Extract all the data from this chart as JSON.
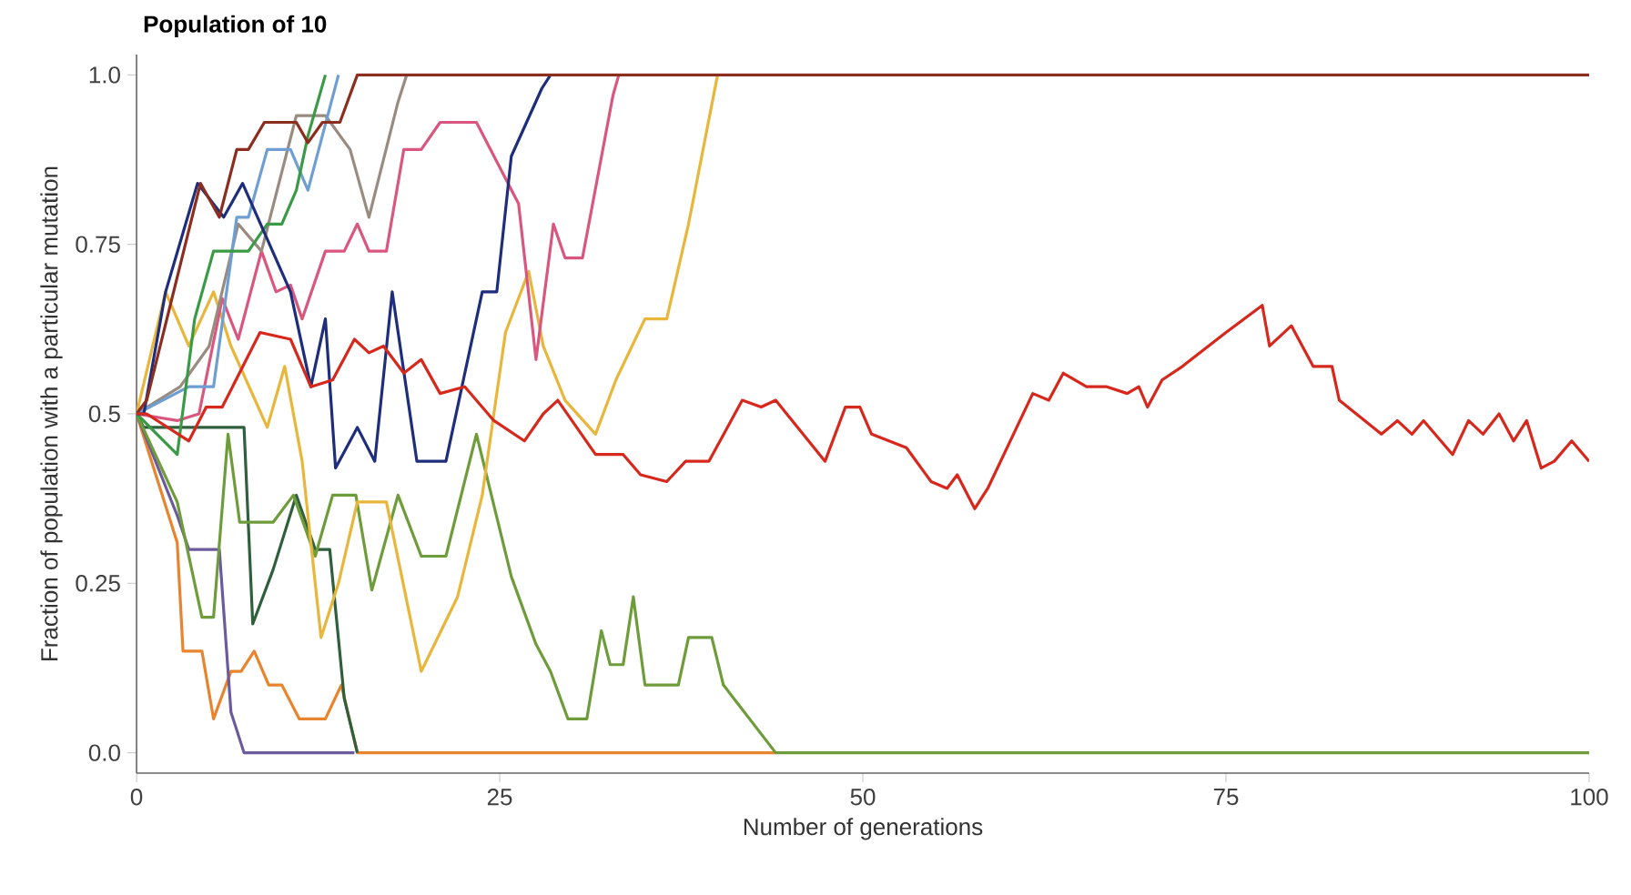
{
  "chart_data": {
    "type": "line",
    "title": "Population of 10",
    "xlabel": "Number of generations",
    "ylabel": "Fraction of population with a particular mutation",
    "xlim": [
      0,
      100
    ],
    "ylim": [
      -0.03,
      1.03
    ],
    "xticks": [
      0,
      25,
      50,
      75,
      100
    ],
    "yticks": [
      {
        "value": 0,
        "label": "0.0"
      },
      0.25,
      0.5,
      0.75,
      {
        "value": 1,
        "label": "1.0"
      }
    ],
    "marker": "none",
    "line_style": "solid",
    "series": [
      {
        "color": "#e8832e",
        "x": [
          0,
          2.8,
          3.2,
          4.5,
          5.3,
          6.5,
          7.2,
          8.1,
          9.1,
          10,
          11.2,
          13,
          14.1,
          15.2,
          44
        ],
        "values": [
          0.5,
          0.31,
          0.15,
          0.15,
          0.05,
          0.12,
          0.12,
          0.15,
          0.1,
          0.1,
          0.05,
          0.05,
          0.1,
          0,
          0
        ]
      },
      {
        "color": "#6b5a9c",
        "x": [
          0,
          2.8,
          3.6,
          5.7,
          6.5,
          7.4,
          15
        ],
        "values": [
          0.5,
          0.35,
          0.3,
          0.3,
          0.06,
          0,
          0
        ]
      },
      {
        "color": "#2f5f3c",
        "x": [
          0,
          0.5,
          7.4,
          8,
          9.4,
          11,
          12.3,
          13.3,
          14.3,
          15.2
        ],
        "values": [
          0.5,
          0.48,
          0.48,
          0.19,
          0.27,
          0.38,
          0.3,
          0.3,
          0.08,
          0
        ]
      },
      {
        "color": "#6e9c3a",
        "x": [
          0,
          2.8,
          4.5,
          5.3,
          6.3,
          7.1,
          9.4,
          10.8,
          12.3,
          13.5,
          15.1,
          16.2,
          18,
          19.6,
          21.3,
          23.4,
          25.8,
          27.5,
          28.5,
          29.7,
          31,
          32,
          32.6,
          33.5,
          34.2,
          35,
          37.3,
          38,
          39.6,
          40.4,
          44,
          100
        ],
        "values": [
          0.5,
          0.37,
          0.2,
          0.2,
          0.47,
          0.34,
          0.34,
          0.38,
          0.29,
          0.38,
          0.38,
          0.24,
          0.38,
          0.29,
          0.29,
          0.47,
          0.26,
          0.16,
          0.12,
          0.05,
          0.05,
          0.18,
          0.13,
          0.13,
          0.23,
          0.1,
          0.1,
          0.17,
          0.17,
          0.1,
          0,
          0
        ]
      },
      {
        "color": "#e9b63c",
        "x": [
          0,
          2,
          3.6,
          5.3,
          6.5,
          9,
          10.2,
          11.4,
          12.7,
          13.9,
          15.2,
          17.2,
          19.6,
          22.1,
          23.8,
          25.4,
          27,
          28,
          29.5,
          31.6,
          33,
          35,
          36.5,
          38,
          40
        ],
        "values": [
          0.5,
          0.68,
          0.6,
          0.68,
          0.6,
          0.48,
          0.57,
          0.43,
          0.17,
          0.25,
          0.37,
          0.37,
          0.12,
          0.23,
          0.38,
          0.62,
          0.71,
          0.6,
          0.52,
          0.47,
          0.55,
          0.64,
          0.64,
          0.78,
          1
        ]
      },
      {
        "color": "#d9577f",
        "x": [
          0,
          2.8,
          4.3,
          5.9,
          7,
          8.6,
          9.6,
          10.6,
          11.4,
          13,
          14.3,
          15.2,
          16,
          17.2,
          18.4,
          19.6,
          20.9,
          23.4,
          26.3,
          27.5,
          28.7,
          29.5,
          30.7,
          32.8,
          33.2
        ],
        "values": [
          0.5,
          0.49,
          0.5,
          0.67,
          0.61,
          0.74,
          0.68,
          0.69,
          0.64,
          0.74,
          0.74,
          0.78,
          0.74,
          0.74,
          0.89,
          0.89,
          0.93,
          0.93,
          0.81,
          0.58,
          0.78,
          0.73,
          0.73,
          0.97,
          1
        ]
      },
      {
        "color": "#9a8b80",
        "x": [
          0,
          3,
          5,
          7,
          8.6,
          11,
          13,
          14.7,
          16,
          18,
          18.6
        ],
        "values": [
          0.5,
          0.54,
          0.6,
          0.78,
          0.74,
          0.94,
          0.94,
          0.89,
          0.79,
          0.96,
          1
        ]
      },
      {
        "color": "#6f9fd2",
        "x": [
          0,
          3.6,
          5.3,
          6.9,
          7.7,
          9,
          10.6,
          11.8,
          13.9
        ],
        "values": [
          0.5,
          0.54,
          0.54,
          0.79,
          0.79,
          0.89,
          0.89,
          0.83,
          1
        ]
      },
      {
        "color": "#3a9a45",
        "x": [
          0,
          2.8,
          4,
          5.3,
          7.7,
          9,
          10,
          11,
          11.8,
          13
        ],
        "values": [
          0.5,
          0.44,
          0.64,
          0.74,
          0.74,
          0.78,
          0.78,
          0.83,
          0.91,
          1
        ]
      },
      {
        "color": "#1f2e7c",
        "x": [
          0,
          0.5,
          2,
          4.2,
          6,
          7.3,
          10.6,
          12,
          13,
          13.7,
          15.2,
          16.4,
          17.6,
          19.3,
          21.3,
          23.8,
          24.8,
          25.8,
          27.9,
          28.5
        ],
        "values": [
          0.5,
          0.5,
          0.68,
          0.84,
          0.79,
          0.84,
          0.68,
          0.54,
          0.64,
          0.42,
          0.48,
          0.43,
          0.68,
          0.43,
          0.43,
          0.68,
          0.68,
          0.88,
          0.98,
          1
        ]
      },
      {
        "color": "#8c2e1f",
        "x": [
          0,
          0.7,
          4.4,
          5.7,
          6.9,
          7.7,
          8.8,
          11,
          11.8,
          12.8,
          14,
          15.2,
          100
        ],
        "values": [
          0.5,
          0.52,
          0.84,
          0.79,
          0.89,
          0.89,
          0.93,
          0.93,
          0.9,
          0.93,
          0.93,
          1,
          1
        ]
      },
      {
        "color": "#d6281c",
        "x": [
          0,
          0.7,
          3.6,
          4.8,
          5.9,
          8.5,
          10.6,
          12,
          13.5,
          15,
          16,
          17,
          18.4,
          19.6,
          20.9,
          22.6,
          24.6,
          26.7,
          28,
          29,
          31.6,
          33.5,
          34.7,
          36.5,
          37.8,
          39.4,
          41.7,
          43,
          44,
          47.4,
          48.8,
          49.8,
          50.6,
          53,
          54.7,
          55.8,
          56.5,
          57.7,
          58.6,
          61.7,
          62.8,
          63.8,
          65.4,
          66.8,
          68.2,
          69,
          69.6,
          70.6,
          72,
          75,
          77.5,
          78,
          79.5,
          81,
          82.3,
          82.8,
          85.7,
          86.8,
          87.8,
          88.6,
          90.6,
          91.7,
          92.7,
          93.8,
          94.8,
          95.7,
          96.7,
          97.6,
          98.8,
          100
        ],
        "values": [
          0.5,
          0.5,
          0.46,
          0.51,
          0.51,
          0.62,
          0.61,
          0.54,
          0.55,
          0.61,
          0.59,
          0.6,
          0.56,
          0.58,
          0.53,
          0.54,
          0.49,
          0.46,
          0.5,
          0.52,
          0.44,
          0.44,
          0.41,
          0.4,
          0.43,
          0.43,
          0.52,
          0.51,
          0.52,
          0.43,
          0.51,
          0.51,
          0.47,
          0.45,
          0.4,
          0.39,
          0.41,
          0.36,
          0.39,
          0.53,
          0.52,
          0.56,
          0.54,
          0.54,
          0.53,
          0.54,
          0.51,
          0.55,
          0.57,
          0.62,
          0.66,
          0.6,
          0.63,
          0.57,
          0.57,
          0.52,
          0.47,
          0.49,
          0.47,
          0.49,
          0.44,
          0.49,
          0.47,
          0.5,
          0.46,
          0.49,
          0.42,
          0.43,
          0.46,
          0.43
        ]
      }
    ]
  }
}
